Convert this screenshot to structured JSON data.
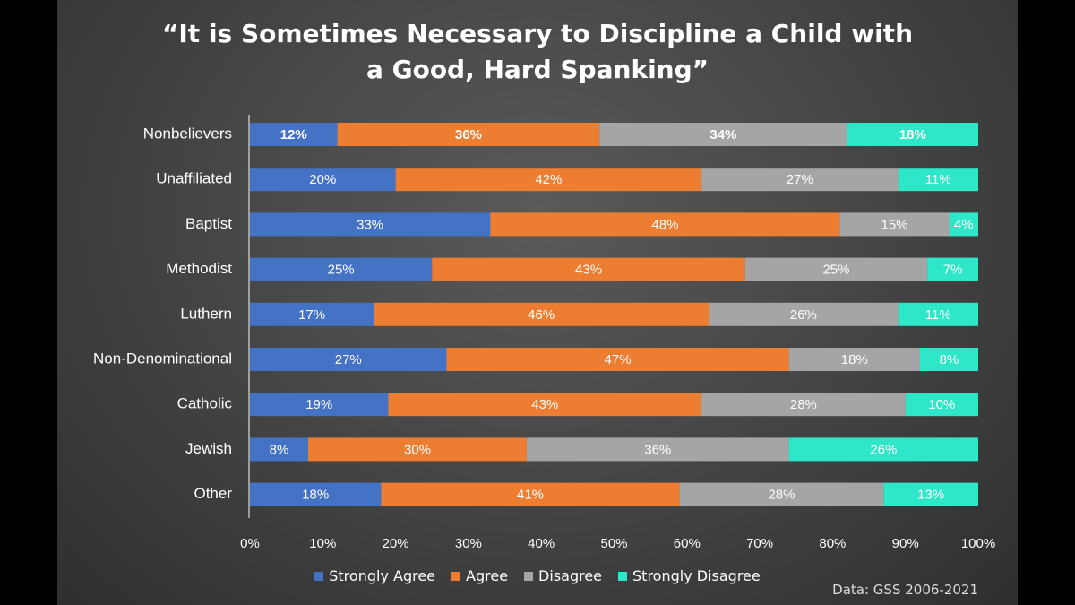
{
  "chart_data": {
    "type": "bar",
    "orientation": "horizontal",
    "stacked": true,
    "title_lines": [
      "“It is Sometimes Necessary to Discipline a Child with",
      "a Good, Hard Spanking”"
    ],
    "categories": [
      "Nonbelievers",
      "Unaffiliated",
      "Baptist",
      "Methodist",
      "Luthern",
      "Non-Denominational",
      "Catholic",
      "Jewish",
      "Other"
    ],
    "series": [
      {
        "name": "Strongly Agree",
        "color": "#4472c4",
        "values": [
          12,
          20,
          33,
          25,
          17,
          27,
          19,
          8,
          18
        ]
      },
      {
        "name": "Agree",
        "color": "#ed7d31",
        "values": [
          36,
          42,
          48,
          43,
          46,
          47,
          43,
          30,
          41
        ]
      },
      {
        "name": "Disagree",
        "color": "#a5a5a5",
        "values": [
          34,
          27,
          15,
          25,
          26,
          18,
          28,
          36,
          28
        ]
      },
      {
        "name": "Strongly Disagree",
        "color": "#2ee6c8",
        "values": [
          18,
          11,
          4,
          7,
          11,
          8,
          10,
          26,
          13
        ]
      }
    ],
    "value_suffix": "%",
    "xlim": [
      0,
      100
    ],
    "x_ticks": [
      "0%",
      "10%",
      "20%",
      "30%",
      "40%",
      "50%",
      "60%",
      "70%",
      "80%",
      "90%",
      "100%"
    ],
    "bold_label_category": "Nonbelievers",
    "legend_position": "bottom",
    "grid": false
  },
  "source_note": "Data: GSS 2006-2021"
}
